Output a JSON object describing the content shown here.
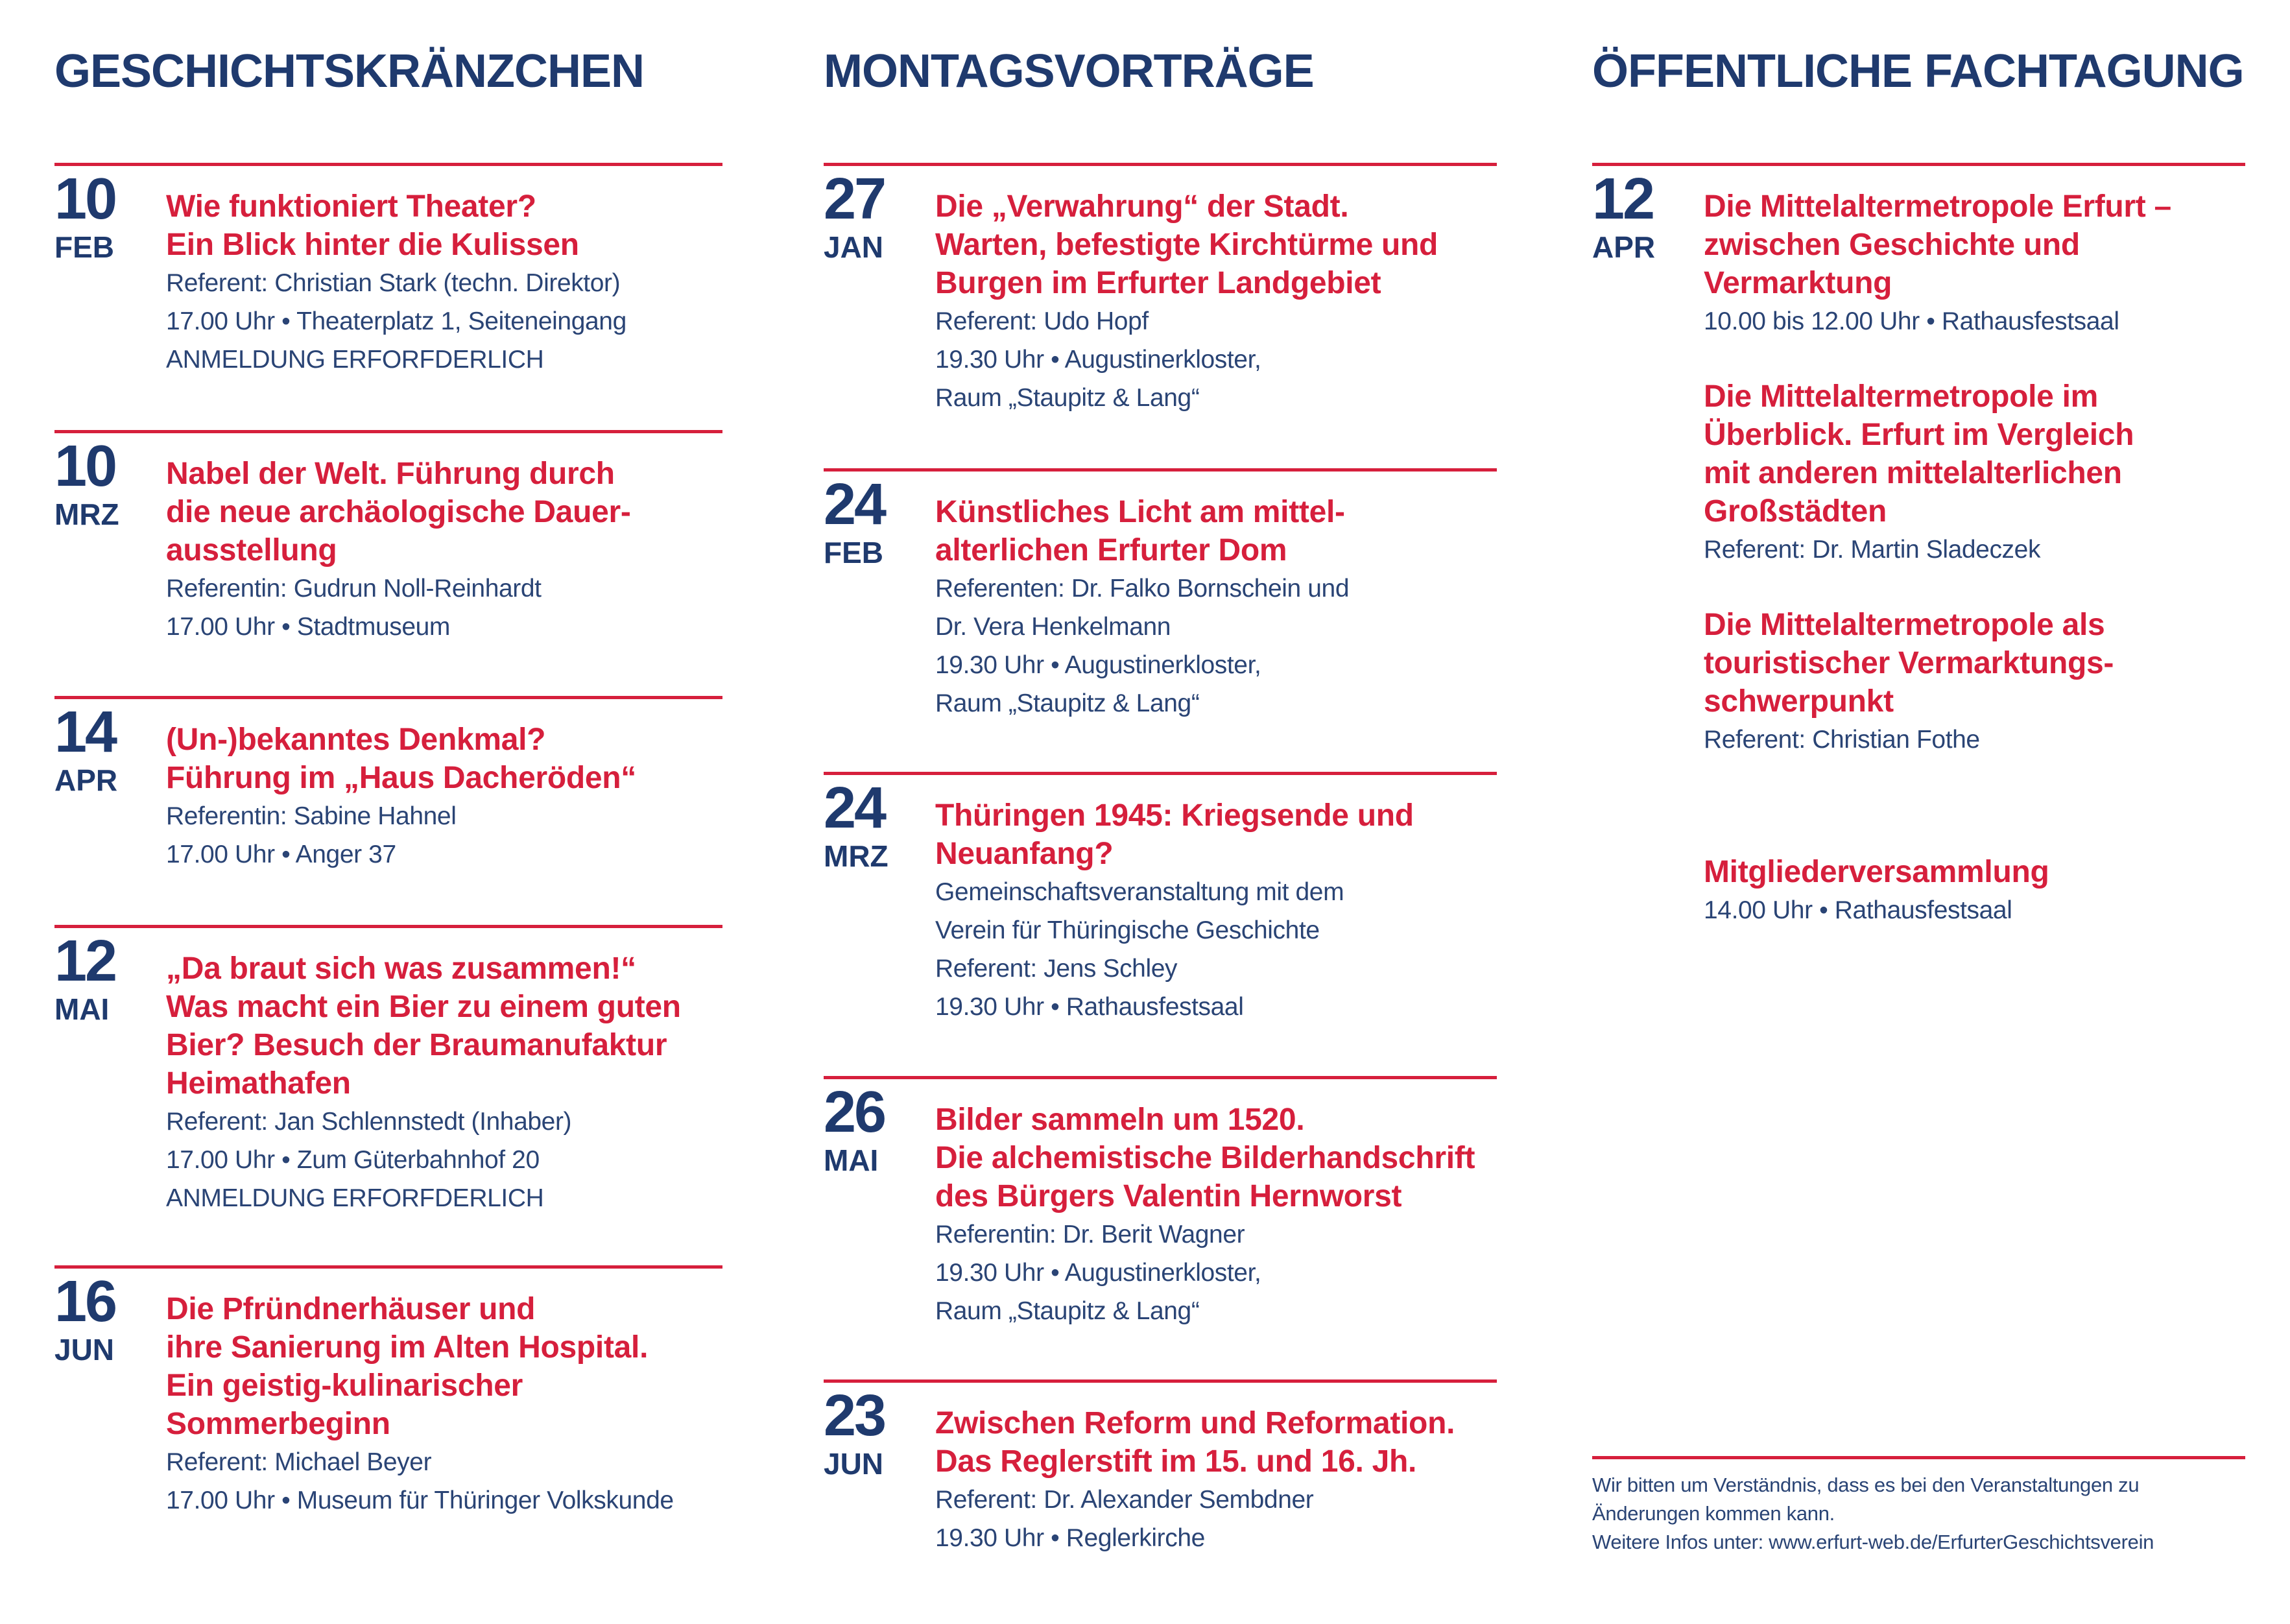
{
  "colors": {
    "navy": "#1f3a6e",
    "red": "#d61f3c"
  },
  "columns": [
    {
      "heading": "GESCHICHTSKRÄNZCHEN",
      "entries": [
        {
          "day": "10",
          "month": "FEB",
          "items": [
            {
              "title": [
                "Wie funktioniert Theater?",
                "Ein Blick hinter die Kulissen"
              ],
              "details": [
                "Referent: Christian Stark (techn. Direktor)",
                "17.00 Uhr • Theaterplatz 1, Seiteneingang",
                "ANMELDUNG ERFORFDERLICH"
              ]
            }
          ]
        },
        {
          "day": "10",
          "month": "MRZ",
          "items": [
            {
              "title": [
                "Nabel der Welt.  Führung durch",
                "die neue archäologische Dauer-",
                "ausstellung"
              ],
              "details": [
                "Referentin: Gudrun Noll-Reinhardt",
                "17.00 Uhr • Stadtmuseum"
              ]
            }
          ]
        },
        {
          "day": "14",
          "month": "APR",
          "items": [
            {
              "title": [
                "(Un-)bekanntes Denkmal?",
                "Führung im „Haus Dacheröden“"
              ],
              "details": [
                "Referentin: Sabine Hahnel",
                "17.00 Uhr • Anger 37"
              ]
            }
          ]
        },
        {
          "day": "12",
          "month": "MAI",
          "items": [
            {
              "title": [
                "„Da braut sich was zusammen!“",
                "Was macht ein Bier zu einem guten",
                "Bier? Besuch der Braumanufaktur",
                "Heimathafen"
              ],
              "details": [
                "Referent: Jan Schlennstedt (Inhaber)",
                "17.00 Uhr • Zum Güterbahnhof 20",
                "ANMELDUNG ERFORFDERLICH"
              ]
            }
          ]
        },
        {
          "day": "16",
          "month": "JUN",
          "items": [
            {
              "title": [
                "Die Pfründnerhäuser und",
                "ihre Sanierung im Alten Hospital.",
                "Ein geistig-kulinarischer",
                "Sommerbeginn"
              ],
              "details": [
                "Referent: Michael Beyer",
                "17.00  Uhr • Museum für Thüringer Volkskunde"
              ]
            }
          ]
        }
      ]
    },
    {
      "heading": "MONTAGSVORTRÄGE",
      "entries": [
        {
          "day": "27",
          "month": "JAN",
          "items": [
            {
              "title": [
                "Die „Verwahrung“ der Stadt.",
                "Warten, befestigte Kirchtürme und",
                "Burgen im Erfurter Landgebiet"
              ],
              "details": [
                "Referent: Udo Hopf",
                "19.30 Uhr • Augustinerkloster,",
                "Raum „Staupitz & Lang“"
              ]
            }
          ]
        },
        {
          "day": "24",
          "month": "FEB",
          "items": [
            {
              "title": [
                "Künstliches Licht am mittel-",
                "alterlichen Erfurter Dom"
              ],
              "details": [
                "Referenten: Dr. Falko Bornschein und",
                "Dr. Vera Henkelmann",
                "19.30 Uhr • Augustinerkloster,",
                "Raum „Staupitz & Lang“"
              ]
            }
          ]
        },
        {
          "day": "24",
          "month": "MRZ",
          "items": [
            {
              "title": [
                "Thüringen 1945: Kriegsende und",
                "Neuanfang?"
              ],
              "details": [
                "Gemeinschaftsveranstaltung mit dem",
                "Verein für Thüringische Geschichte",
                "Referent: Jens Schley",
                "19.30 Uhr • Rathausfestsaal"
              ]
            }
          ]
        },
        {
          "day": "26",
          "month": "MAI",
          "items": [
            {
              "title": [
                "Bilder sammeln um 1520.",
                "Die alchemistische Bilderhandschrift",
                "des Bürgers Valentin Hernworst"
              ],
              "details": [
                "Referentin: Dr. Berit Wagner",
                "19.30 Uhr • Augustinerkloster,",
                "Raum „Staupitz & Lang“"
              ]
            }
          ]
        },
        {
          "day": "23",
          "month": "JUN",
          "items": [
            {
              "title": [
                "Zwischen Reform und Reformation.",
                "Das Reglerstift im 15. und  16. Jh."
              ],
              "details": [
                "Referent: Dr. Alexander Sembdner",
                "19.30 Uhr • Reglerkirche"
              ]
            }
          ]
        }
      ]
    },
    {
      "heading": "ÖFFENTLICHE FACHTAGUNG",
      "entries": [
        {
          "day": "12",
          "month": "APR",
          "items": [
            {
              "title": [
                "Die Mittelaltermetropole Erfurt –",
                "zwischen Geschichte und",
                "Vermarktung"
              ],
              "details": [
                "10.00 bis 12.00 Uhr • Rathausfestsaal"
              ]
            },
            {
              "title": [
                "Die Mittelaltermetropole im",
                "Überblick. Erfurt im Vergleich",
                "mit anderen mittelalterlichen",
                "Großstädten"
              ],
              "details": [
                "Referent: Dr. Martin Sladeczek"
              ]
            },
            {
              "title": [
                "Die Mittelaltermetropole als",
                "touristischer Vermarktungs-",
                "schwerpunkt"
              ],
              "details": [
                "Referent: Christian Fothe"
              ]
            },
            {
              "title": [
                "Mitgliederversammlung"
              ],
              "details": [
                "14.00 Uhr • Rathausfestsaal"
              ]
            }
          ]
        }
      ]
    }
  ],
  "footer": {
    "lines": [
      "Wir bitten um Verständnis, dass es bei den Veranstaltungen zu",
      "Änderungen kommen kann.",
      "Weitere Infos unter: www.erfurt-web.de/ErfurterGeschichtsverein"
    ]
  }
}
